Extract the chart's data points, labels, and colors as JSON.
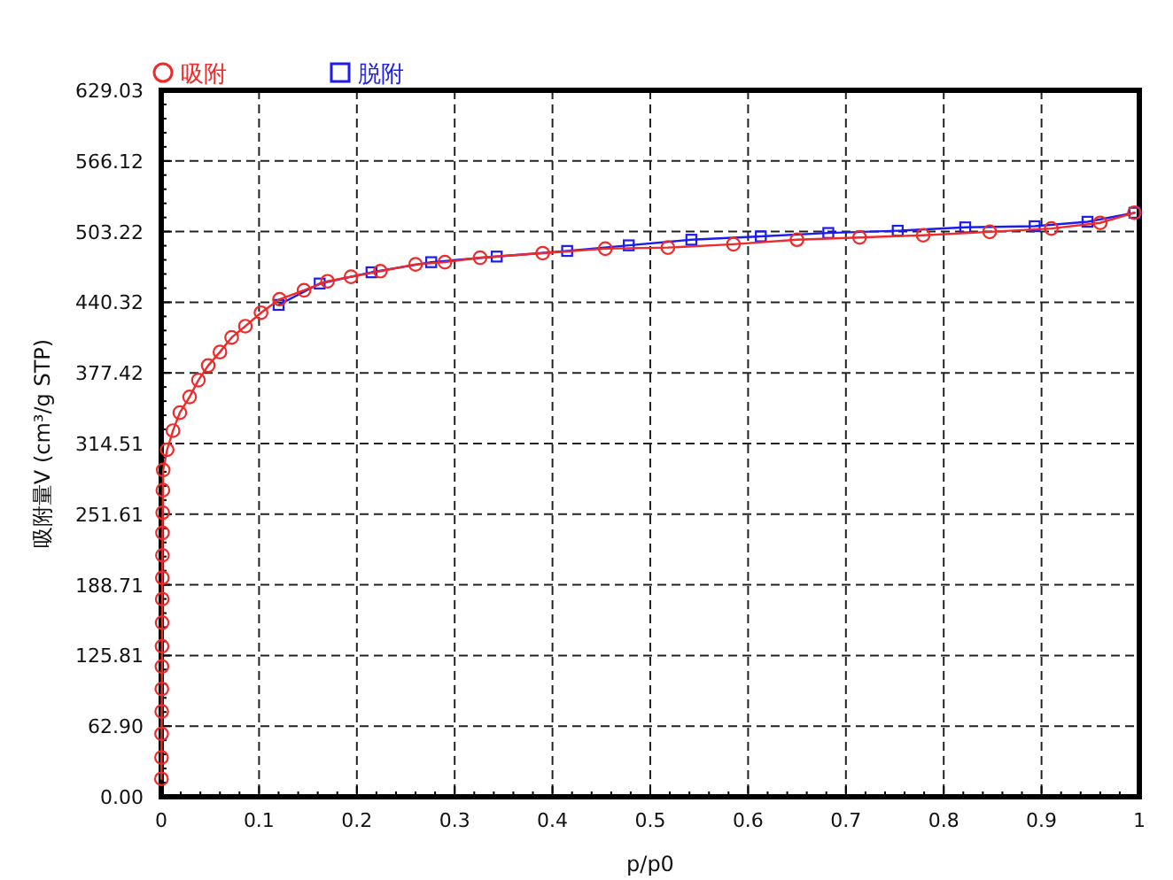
{
  "chart_data": {
    "type": "line",
    "xlabel": "p/p0",
    "ylabel": "吸附量V (cm³/g STP)",
    "xlim": [
      0,
      1
    ],
    "ylim": [
      0,
      629.03
    ],
    "xticks": [
      0,
      0.1,
      0.2,
      0.3,
      0.4,
      0.5,
      0.6,
      0.7,
      0.8,
      0.9,
      1
    ],
    "yticks": [
      {
        "value": 0,
        "label": "0.00"
      },
      {
        "value": 62.9,
        "label": "62.90"
      },
      {
        "value": 125.81,
        "label": "125.81"
      },
      {
        "value": 188.71,
        "label": "188.71"
      },
      {
        "value": 251.61,
        "label": "251.61"
      },
      {
        "value": 314.51,
        "label": "314.51"
      },
      {
        "value": 377.42,
        "label": "377.42"
      },
      {
        "value": 440.32,
        "label": "440.32"
      },
      {
        "value": 503.22,
        "label": "503.22"
      },
      {
        "value": 566.12,
        "label": "566.12"
      },
      {
        "value": 629.03,
        "label": "629.03"
      }
    ],
    "grid": true,
    "legend": "top left",
    "line_style": "solid",
    "series": [
      {
        "name": "吸附",
        "color": "#ee2a2a",
        "marker": "circle",
        "x": [
          0.0002,
          0.0003,
          0.0004,
          0.0005,
          0.0006,
          0.0007,
          0.0008,
          0.0009,
          0.001,
          0.0011,
          0.0012,
          0.0013,
          0.0015,
          0.0017,
          0.002,
          0.006,
          0.012,
          0.019,
          0.029,
          0.038,
          0.048,
          0.06,
          0.072,
          0.086,
          0.102,
          0.121,
          0.146,
          0.17,
          0.194,
          0.224,
          0.26,
          0.29,
          0.326,
          0.39,
          0.454,
          0.518,
          0.585,
          0.65,
          0.714,
          0.779,
          0.847,
          0.91,
          0.96,
          0.995
        ],
        "values": [
          16,
          35,
          56,
          76,
          96,
          116,
          134,
          155,
          176,
          195,
          215,
          235,
          253,
          273,
          291,
          309,
          326,
          342,
          356,
          371,
          384,
          396,
          409,
          419,
          431,
          443,
          451,
          459,
          463,
          468,
          474,
          476,
          480,
          484,
          488,
          489,
          492,
          496,
          498,
          500,
          503,
          506,
          511,
          520
        ]
      },
      {
        "name": "脱附",
        "color": "#1c1cf0",
        "marker": "square",
        "x": [
          0.12,
          0.162,
          0.215,
          0.276,
          0.343,
          0.415,
          0.478,
          0.542,
          0.613,
          0.682,
          0.753,
          0.822,
          0.893,
          0.947,
          0.995
        ],
        "values": [
          438,
          457,
          467,
          476,
          481,
          486,
          491,
          496,
          499,
          502,
          504,
          507,
          508,
          512,
          520
        ]
      }
    ]
  }
}
